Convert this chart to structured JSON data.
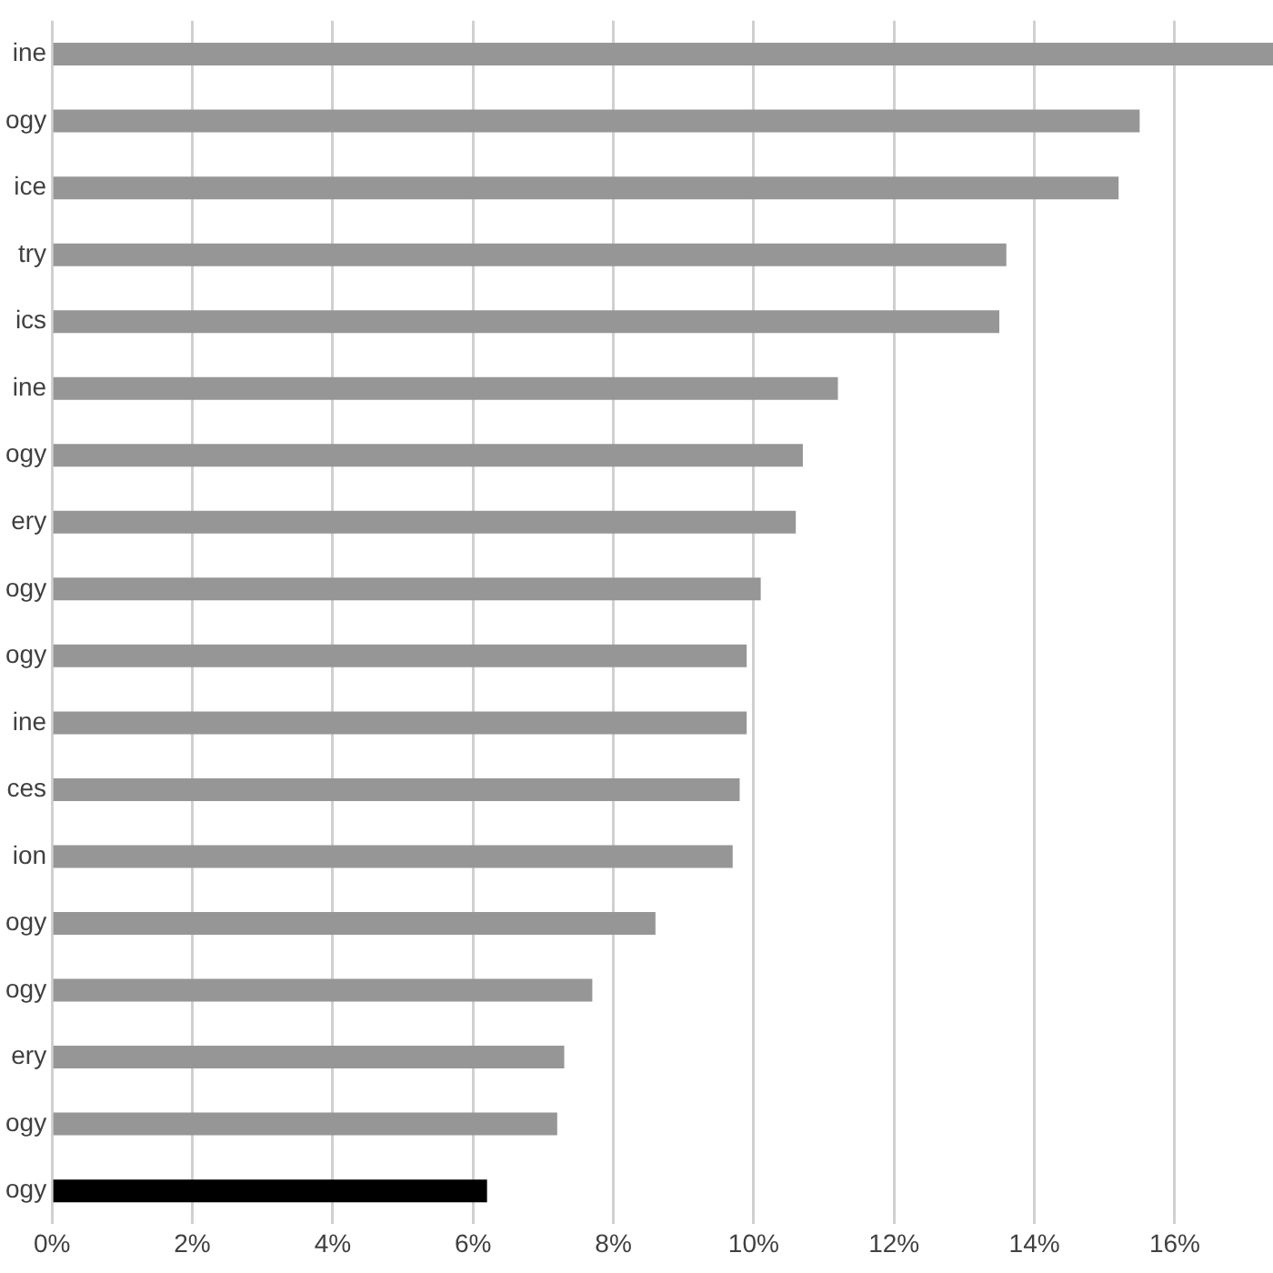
{
  "chart_data": {
    "type": "bar",
    "orientation": "horizontal",
    "categories": [
      "ine",
      "ogy",
      "ice",
      "try",
      "ics",
      "ine",
      "ogy",
      "ery",
      "ogy",
      "ogy",
      "ine",
      "ces",
      "ion",
      "ogy",
      "ogy",
      "ery",
      "ogy",
      "ogy"
    ],
    "values": [
      17.4,
      15.5,
      15.2,
      13.6,
      13.5,
      11.2,
      10.7,
      10.6,
      10.1,
      9.9,
      9.9,
      9.8,
      9.7,
      8.6,
      7.7,
      7.3,
      7.2,
      6.2
    ],
    "colors": [
      "#969696",
      "#969696",
      "#969696",
      "#969696",
      "#969696",
      "#969696",
      "#969696",
      "#969696",
      "#969696",
      "#969696",
      "#969696",
      "#969696",
      "#969696",
      "#969696",
      "#969696",
      "#969696",
      "#969696",
      "#000000"
    ],
    "xlim": [
      0,
      17.4
    ],
    "xticks": [
      {
        "value": 0,
        "label": "0%"
      },
      {
        "value": 2,
        "label": "2%"
      },
      {
        "value": 4,
        "label": "4%"
      },
      {
        "value": 6,
        "label": "6%"
      },
      {
        "value": 8,
        "label": "8%"
      },
      {
        "value": 10,
        "label": "10%"
      },
      {
        "value": 12,
        "label": "12%"
      },
      {
        "value": 14,
        "label": "14%"
      },
      {
        "value": 16,
        "label": "16%"
      }
    ],
    "grid": "x",
    "legend": false
  }
}
